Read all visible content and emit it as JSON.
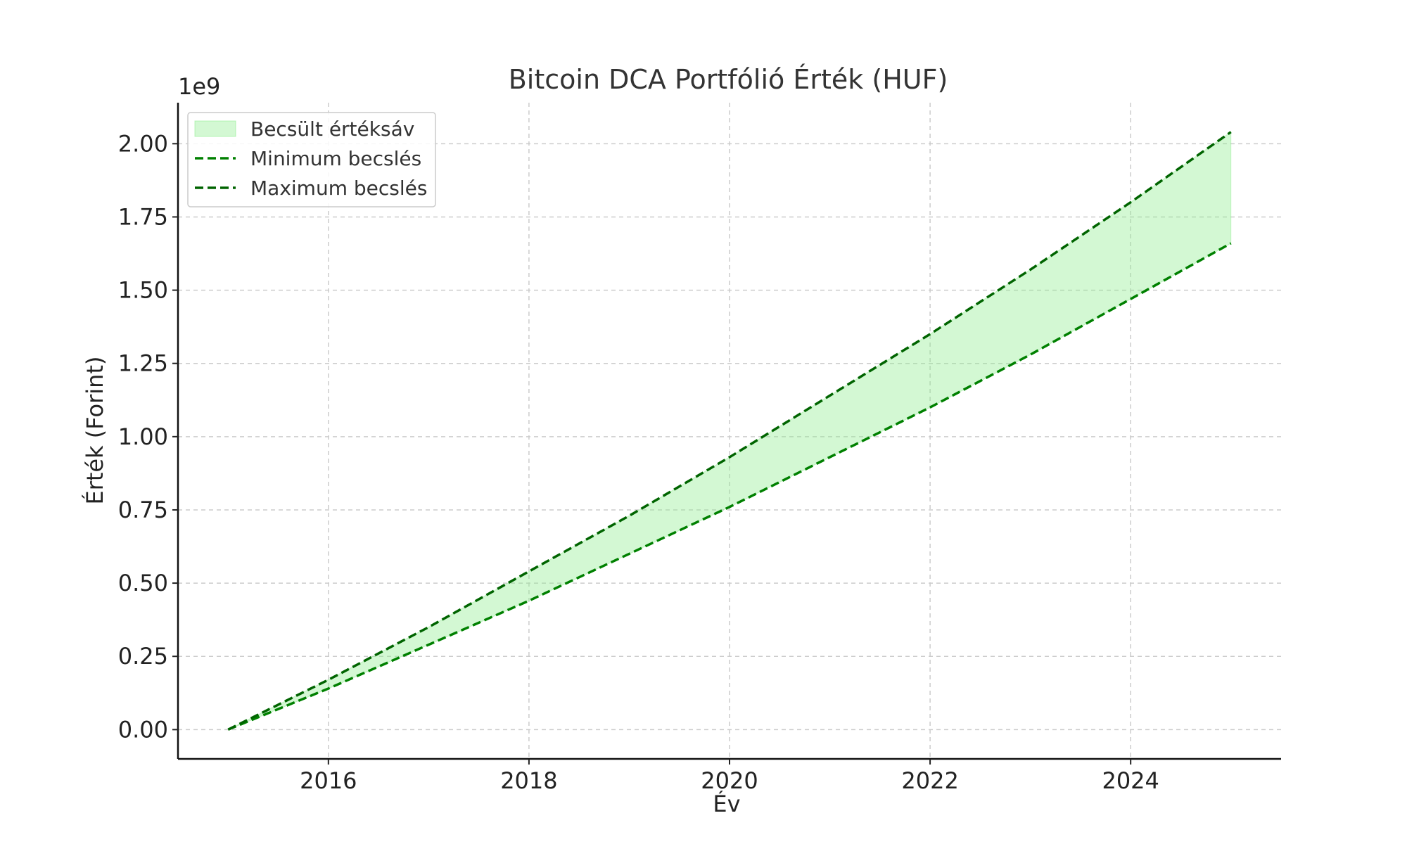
{
  "chart_data": {
    "type": "area",
    "title": "Bitcoin DCA Portfólió Érték (HUF)",
    "xlabel": "Év",
    "ylabel": "Érték (Forint)",
    "y_offset_text": "1e9",
    "xlim": [
      2014.5,
      2025.5
    ],
    "ylim": [
      -0.1,
      2.14
    ],
    "y_scale_multiplier": 1000000000,
    "xticks": [
      2016,
      2018,
      2020,
      2022,
      2024
    ],
    "xtick_labels": [
      "2016",
      "2018",
      "2020",
      "2022",
      "2024"
    ],
    "yticks": [
      0,
      0.25,
      0.5,
      0.75,
      1.0,
      1.25,
      1.5,
      1.75,
      2.0
    ],
    "ytick_labels": [
      "0.00",
      "0.25",
      "0.50",
      "0.75",
      "1.00",
      "1.25",
      "1.50",
      "1.75",
      "2.00"
    ],
    "grid": true,
    "legend_position": "top-left",
    "x": [
      2015,
      2016,
      2017,
      2018,
      2019,
      2020,
      2021,
      2022,
      2023,
      2024,
      2025
    ],
    "series": [
      {
        "name": "Minimum becslés",
        "values": [
          0.0,
          0.14,
          0.29,
          0.44,
          0.6,
          0.76,
          0.93,
          1.1,
          1.28,
          1.47,
          1.66
        ],
        "color": "#008000",
        "style": "dashed"
      },
      {
        "name": "Maximum becslés",
        "values": [
          0.0,
          0.17,
          0.35,
          0.54,
          0.73,
          0.93,
          1.14,
          1.35,
          1.57,
          1.8,
          2.04
        ],
        "color": "#006400",
        "style": "dashed"
      }
    ],
    "band": {
      "name": "Becsült értéksáv",
      "lower": "Minimum becslés",
      "upper": "Maximum becslés",
      "color": "#90ee90",
      "opacity": 0.4
    }
  }
}
